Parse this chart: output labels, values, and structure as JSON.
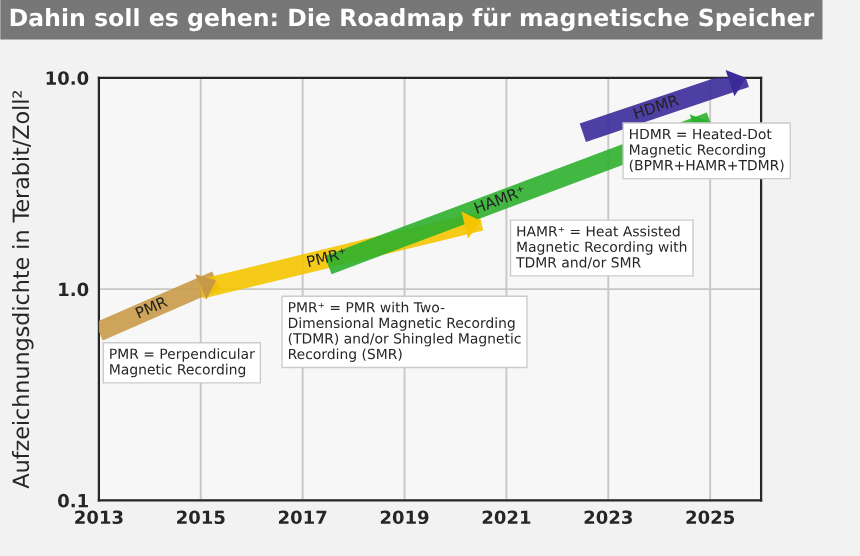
{
  "chart_data": {
    "type": "line",
    "title": "Dahin soll es gehen: Die Roadmap für magnetische Speicher",
    "ylabel": "Aufzeichnungsdichte in Terabit/Zoll²",
    "log": "y",
    "grid": true,
    "legend": false,
    "line_style": "solid",
    "marker": "none",
    "series": [
      {
        "name": "PMR",
        "color": "#c89a48",
        "x": [
          2013,
          2015.3
        ],
        "values": [
          0.63,
          1.1
        ]
      },
      {
        "name": "PMR⁺",
        "color": "#f5c400",
        "x": [
          2015,
          2020.5
        ],
        "values": [
          1.0,
          2.1
        ]
      },
      {
        "name": "HAMR⁺",
        "color": "#2db02d",
        "x": [
          2017.5,
          2025
        ],
        "values": [
          1.3,
          6.2
        ]
      },
      {
        "name": "HDMR",
        "color": "#3a2a9a",
        "x": [
          2022.5,
          2025.7
        ],
        "values": [
          5.5,
          10
        ]
      }
    ],
    "xlim": [
      2013,
      2026
    ],
    "xticks": [
      2013,
      2015,
      2017,
      2019,
      2021,
      2023,
      2025
    ],
    "ylim": [
      0.1,
      10
    ],
    "yticks": [
      {
        "value": 0.1,
        "label": "0.1"
      },
      {
        "value": 1,
        "label": "1.0"
      },
      {
        "value": 10,
        "label": "10.0"
      }
    ],
    "annotations": [
      "PMR = Perpendicular\nMagnetic Recording",
      "PMR⁺ = PMR with Two-\nDimensional Magnetic Recording\n(TDMR) and/or Shingled Magnetic\nRecording (SMR)",
      "HAMR⁺ = Heat Assisted\nMagnetic Recording with\nTDMR and/or SMR",
      "HDMR = Heated-Dot\nMagnetic Recording\n(BPMR+HAMR+TDMR)"
    ]
  }
}
